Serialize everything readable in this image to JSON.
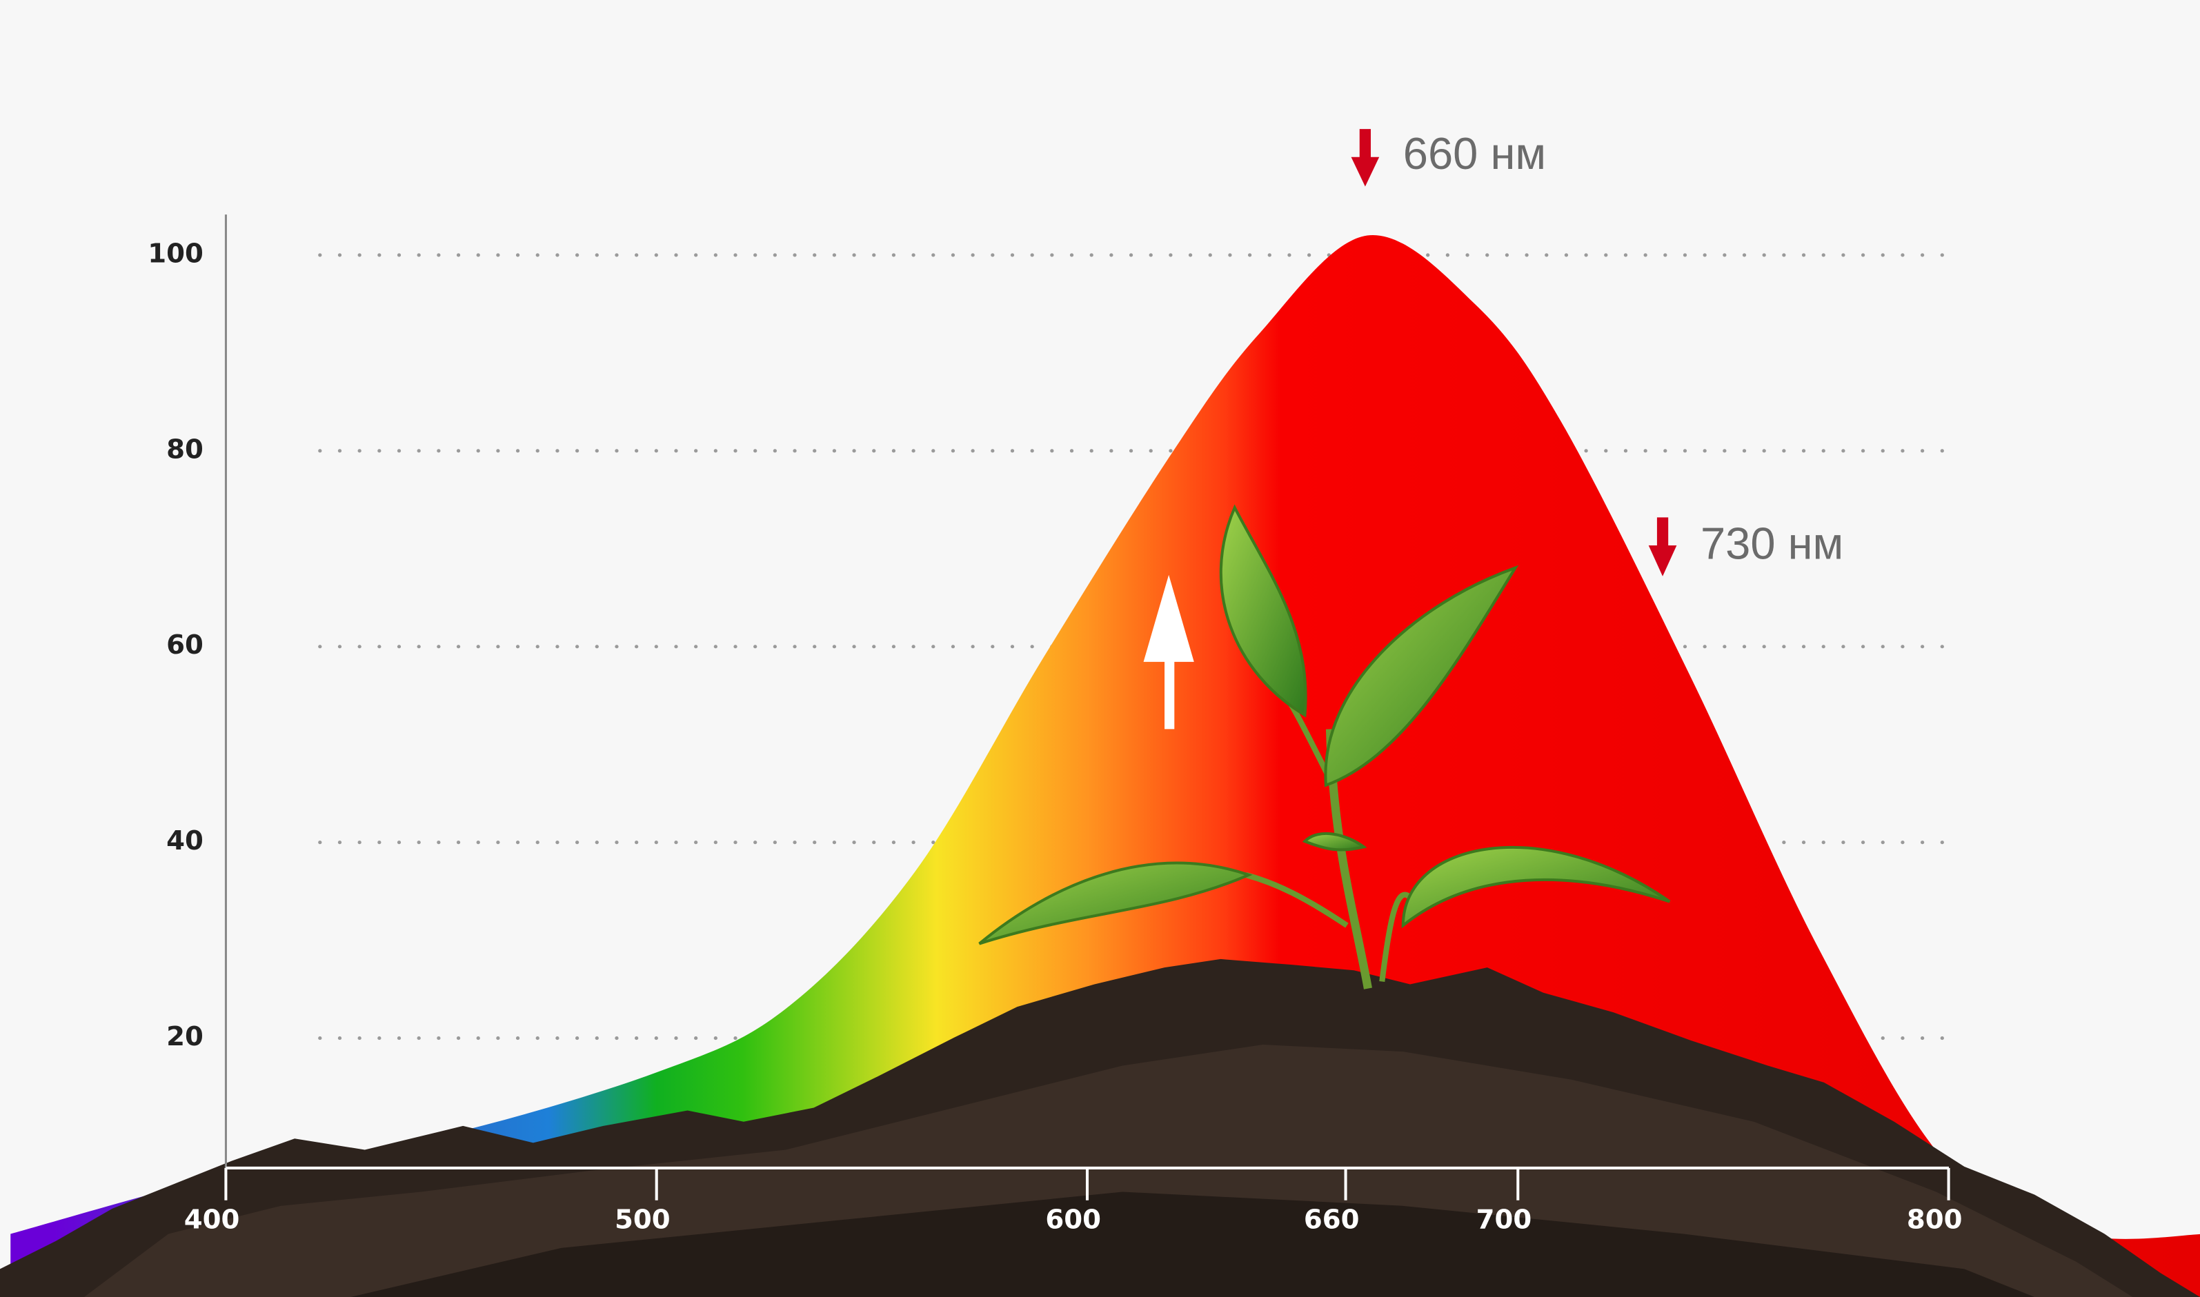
{
  "chart_data": {
    "type": "area",
    "x": [
      350,
      400,
      450,
      500,
      530,
      560,
      590,
      620,
      640,
      665,
      690,
      710,
      740,
      770,
      800,
      830,
      860
    ],
    "values": [
      0,
      6,
      10,
      16.5,
      23,
      37,
      59,
      80,
      92,
      102,
      95,
      83,
      57,
      29,
      7,
      0,
      0
    ],
    "xlim": [
      350,
      860
    ],
    "xticks": [
      400,
      500,
      600,
      660,
      700,
      800
    ],
    "ylim": [
      0,
      105
    ],
    "yticks": [
      20,
      40,
      60,
      80,
      100
    ],
    "grid": true,
    "gradient_stops": [
      {
        "value": 360,
        "color": "#6a00d8"
      },
      {
        "value": 430,
        "color": "#2f5fc2"
      },
      {
        "value": 475,
        "color": "#1e80d8"
      },
      {
        "value": 500,
        "color": "#10b020"
      },
      {
        "value": 520,
        "color": "#30c010"
      },
      {
        "value": 565,
        "color": "#f8e424"
      },
      {
        "value": 600,
        "color": "#ff9420"
      },
      {
        "value": 632,
        "color": "#ff3a10"
      },
      {
        "value": 645,
        "color": "#f80000"
      },
      {
        "value": 860,
        "color": "#e60000"
      }
    ],
    "annotations": [
      {
        "text": "660 нм"
      },
      {
        "text": "730 нм"
      }
    ]
  }
}
